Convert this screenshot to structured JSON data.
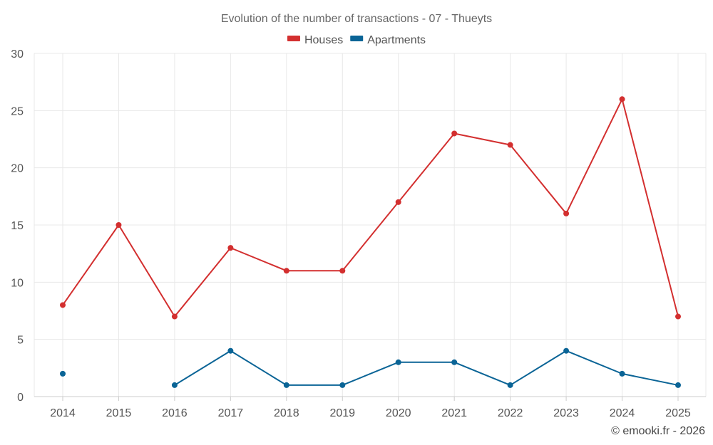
{
  "chart_data": {
    "type": "line",
    "title": "Evolution of the number of transactions - 07 - Thueyts",
    "xlabel": "",
    "ylabel": "",
    "ylim": [
      0,
      30
    ],
    "yticks": [
      0,
      5,
      10,
      15,
      20,
      25,
      30
    ],
    "categories": [
      "2014",
      "2015",
      "2016",
      "2017",
      "2018",
      "2019",
      "2020",
      "2021",
      "2022",
      "2023",
      "2024",
      "2025"
    ],
    "series": [
      {
        "name": "Houses",
        "color": "#d32f2f",
        "values": [
          8,
          15,
          7,
          13,
          11,
          11,
          17,
          23,
          22,
          16,
          26,
          7
        ]
      },
      {
        "name": "Apartments",
        "color": "#0a6496",
        "values": [
          2,
          null,
          1,
          4,
          1,
          1,
          3,
          3,
          1,
          4,
          2,
          1
        ]
      }
    ],
    "legend_position": "top-center",
    "grid": true
  },
  "credit": "© emooki.fr - 2026"
}
